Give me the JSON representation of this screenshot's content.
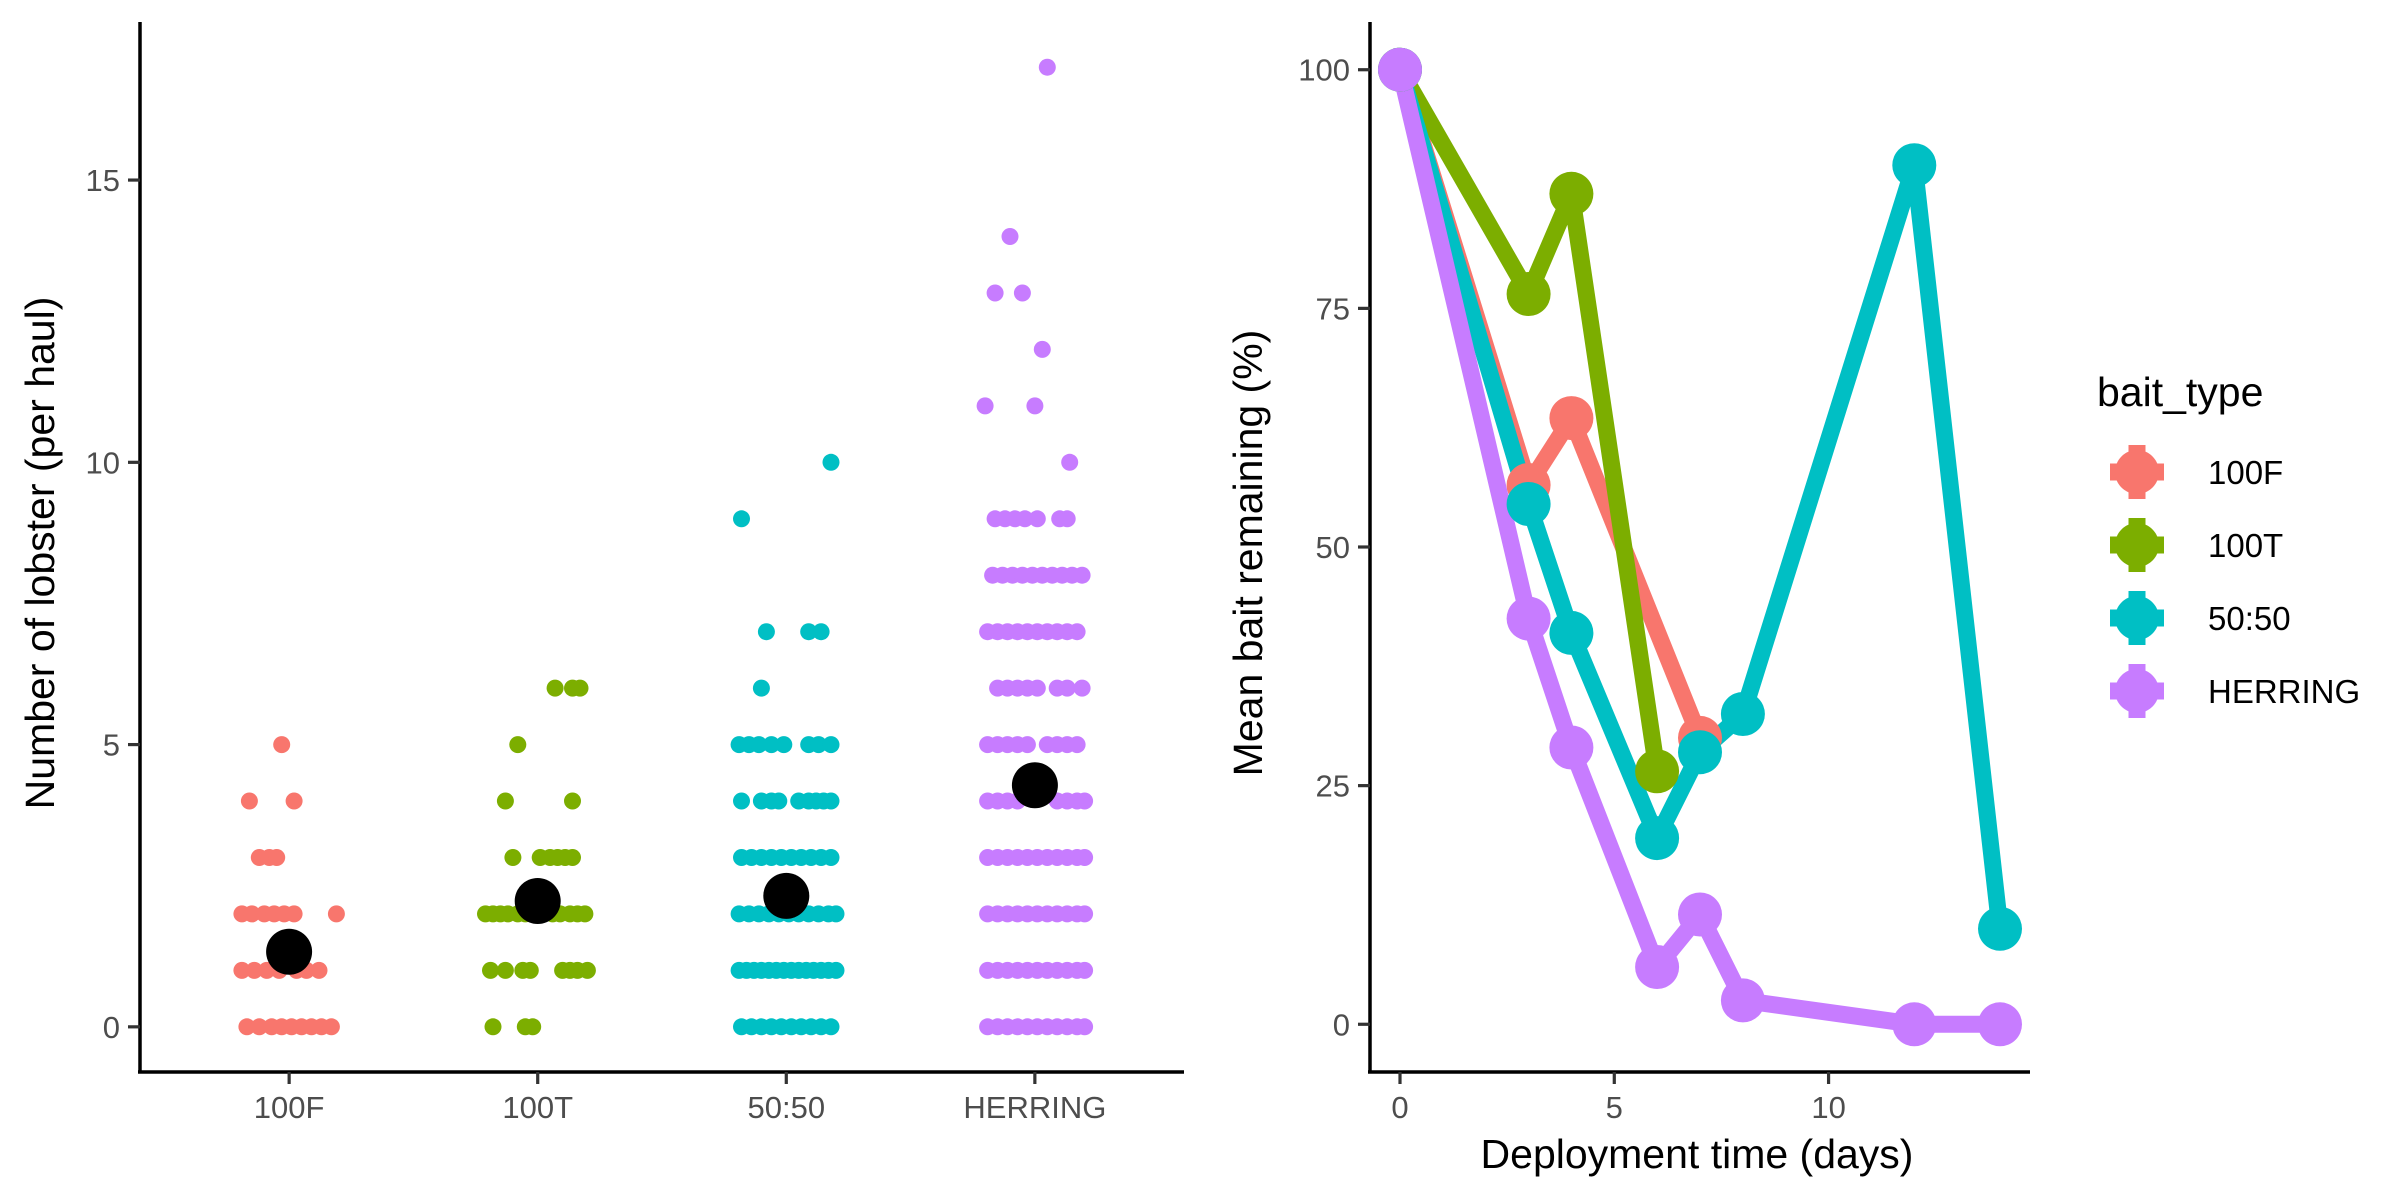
{
  "chart_data": [
    {
      "type": "scatter",
      "title": "",
      "xlabel": "",
      "ylabel": "Number of lobster (per haul)",
      "categories": [
        "100F",
        "100T",
        "50:50",
        "HERRING"
      ],
      "ylim": [
        -0.8,
        17.8
      ],
      "yticks": [
        0,
        5,
        10,
        15
      ],
      "grid": false,
      "colors": {
        "100F": "#F8766D",
        "100T": "#7CAE00",
        "50:50": "#00BFC4",
        "HERRING": "#C77CFF",
        "mean": "#000000"
      },
      "points": {
        "100F": [
          [
            -0.17,
            0
          ],
          [
            -0.12,
            0
          ],
          [
            -0.07,
            0
          ],
          [
            -0.03,
            0
          ],
          [
            0.01,
            0
          ],
          [
            0.05,
            0
          ],
          [
            0.09,
            0
          ],
          [
            0.13,
            0
          ],
          [
            0.17,
            0
          ],
          [
            -0.19,
            1
          ],
          [
            -0.14,
            1
          ],
          [
            -0.09,
            1
          ],
          [
            -0.04,
            1
          ],
          [
            0.03,
            1
          ],
          [
            0.07,
            1
          ],
          [
            0.12,
            1
          ],
          [
            -0.19,
            2
          ],
          [
            -0.15,
            2
          ],
          [
            -0.1,
            2
          ],
          [
            -0.06,
            2
          ],
          [
            -0.02,
            2
          ],
          [
            0.02,
            2
          ],
          [
            0.19,
            2
          ],
          [
            -0.12,
            3
          ],
          [
            -0.08,
            3
          ],
          [
            -0.05,
            3
          ],
          [
            -0.16,
            4
          ],
          [
            0.02,
            4
          ],
          [
            -0.03,
            5
          ]
        ],
        "100T": [
          [
            -0.18,
            0
          ],
          [
            -0.05,
            0
          ],
          [
            -0.02,
            0
          ],
          [
            -0.19,
            1
          ],
          [
            -0.13,
            1
          ],
          [
            -0.06,
            1
          ],
          [
            -0.03,
            1
          ],
          [
            0.1,
            1
          ],
          [
            0.13,
            1
          ],
          [
            0.16,
            1
          ],
          [
            0.2,
            1
          ],
          [
            -0.21,
            2
          ],
          [
            -0.18,
            2
          ],
          [
            -0.15,
            2
          ],
          [
            -0.12,
            2
          ],
          [
            -0.08,
            2
          ],
          [
            -0.05,
            2
          ],
          [
            0.02,
            2
          ],
          [
            0.06,
            2
          ],
          [
            0.09,
            2
          ],
          [
            0.13,
            2
          ],
          [
            0.16,
            2
          ],
          [
            0.19,
            2
          ],
          [
            -0.1,
            3
          ],
          [
            0.01,
            3
          ],
          [
            0.05,
            3
          ],
          [
            0.08,
            3
          ],
          [
            0.11,
            3
          ],
          [
            0.14,
            3
          ],
          [
            -0.13,
            4
          ],
          [
            0.14,
            4
          ],
          [
            -0.08,
            5
          ],
          [
            0.07,
            6
          ],
          [
            0.14,
            6
          ],
          [
            0.17,
            6
          ]
        ],
        "50:50": [
          [
            -0.18,
            0
          ],
          [
            -0.14,
            0
          ],
          [
            -0.1,
            0
          ],
          [
            -0.06,
            0
          ],
          [
            -0.02,
            0
          ],
          [
            0.02,
            0
          ],
          [
            0.06,
            0
          ],
          [
            0.1,
            0
          ],
          [
            0.14,
            0
          ],
          [
            0.18,
            0
          ],
          [
            -0.19,
            1
          ],
          [
            -0.16,
            1
          ],
          [
            -0.13,
            1
          ],
          [
            -0.1,
            1
          ],
          [
            -0.07,
            1
          ],
          [
            -0.04,
            1
          ],
          [
            -0.01,
            1
          ],
          [
            0.02,
            1
          ],
          [
            0.05,
            1
          ],
          [
            0.08,
            1
          ],
          [
            0.11,
            1
          ],
          [
            0.14,
            1
          ],
          [
            0.17,
            1
          ],
          [
            0.2,
            1
          ],
          [
            -0.19,
            2
          ],
          [
            -0.15,
            2
          ],
          [
            -0.11,
            2
          ],
          [
            -0.07,
            2
          ],
          [
            -0.03,
            2
          ],
          [
            0.01,
            2
          ],
          [
            0.05,
            2
          ],
          [
            0.09,
            2
          ],
          [
            0.13,
            2
          ],
          [
            0.17,
            2
          ],
          [
            0.2,
            2
          ],
          [
            -0.18,
            3
          ],
          [
            -0.14,
            3
          ],
          [
            -0.1,
            3
          ],
          [
            -0.06,
            3
          ],
          [
            -0.02,
            3
          ],
          [
            0.02,
            3
          ],
          [
            0.06,
            3
          ],
          [
            0.1,
            3
          ],
          [
            0.14,
            3
          ],
          [
            0.18,
            3
          ],
          [
            -0.18,
            4
          ],
          [
            -0.1,
            4
          ],
          [
            -0.06,
            4
          ],
          [
            -0.03,
            4
          ],
          [
            0.05,
            4
          ],
          [
            0.09,
            4
          ],
          [
            0.12,
            4
          ],
          [
            0.15,
            4
          ],
          [
            0.18,
            4
          ],
          [
            -0.19,
            5
          ],
          [
            -0.15,
            5
          ],
          [
            -0.11,
            5
          ],
          [
            -0.06,
            5
          ],
          [
            -0.01,
            5
          ],
          [
            0.09,
            5
          ],
          [
            0.13,
            5
          ],
          [
            0.18,
            5
          ],
          [
            -0.1,
            6
          ],
          [
            -0.08,
            7
          ],
          [
            0.09,
            7
          ],
          [
            0.14,
            7
          ],
          [
            -0.18,
            9
          ],
          [
            0.18,
            10
          ]
        ],
        "HERRING": [
          [
            -0.19,
            0
          ],
          [
            -0.15,
            0
          ],
          [
            -0.11,
            0
          ],
          [
            -0.07,
            0
          ],
          [
            -0.03,
            0
          ],
          [
            0.01,
            0
          ],
          [
            0.05,
            0
          ],
          [
            0.09,
            0
          ],
          [
            0.13,
            0
          ],
          [
            0.17,
            0
          ],
          [
            0.2,
            0
          ],
          [
            -0.19,
            1
          ],
          [
            -0.15,
            1
          ],
          [
            -0.11,
            1
          ],
          [
            -0.07,
            1
          ],
          [
            -0.03,
            1
          ],
          [
            0.01,
            1
          ],
          [
            0.05,
            1
          ],
          [
            0.09,
            1
          ],
          [
            0.13,
            1
          ],
          [
            0.17,
            1
          ],
          [
            0.2,
            1
          ],
          [
            -0.19,
            2
          ],
          [
            -0.15,
            2
          ],
          [
            -0.11,
            2
          ],
          [
            -0.07,
            2
          ],
          [
            -0.03,
            2
          ],
          [
            0.01,
            2
          ],
          [
            0.05,
            2
          ],
          [
            0.09,
            2
          ],
          [
            0.13,
            2
          ],
          [
            0.17,
            2
          ],
          [
            0.2,
            2
          ],
          [
            -0.19,
            3
          ],
          [
            -0.15,
            3
          ],
          [
            -0.11,
            3
          ],
          [
            -0.07,
            3
          ],
          [
            -0.03,
            3
          ],
          [
            0.01,
            3
          ],
          [
            0.05,
            3
          ],
          [
            0.09,
            3
          ],
          [
            0.13,
            3
          ],
          [
            0.17,
            3
          ],
          [
            0.2,
            3
          ],
          [
            -0.19,
            4
          ],
          [
            -0.15,
            4
          ],
          [
            -0.11,
            4
          ],
          [
            -0.07,
            4
          ],
          [
            0.09,
            4
          ],
          [
            0.13,
            4
          ],
          [
            0.17,
            4
          ],
          [
            0.2,
            4
          ],
          [
            -0.19,
            5
          ],
          [
            -0.15,
            5
          ],
          [
            -0.11,
            5
          ],
          [
            -0.07,
            5
          ],
          [
            -0.03,
            5
          ],
          [
            0.05,
            5
          ],
          [
            0.09,
            5
          ],
          [
            0.13,
            5
          ],
          [
            0.17,
            5
          ],
          [
            -0.15,
            6
          ],
          [
            -0.11,
            6
          ],
          [
            -0.07,
            6
          ],
          [
            -0.03,
            6
          ],
          [
            0.01,
            6
          ],
          [
            0.09,
            6
          ],
          [
            0.13,
            6
          ],
          [
            0.19,
            6
          ],
          [
            -0.19,
            7
          ],
          [
            -0.15,
            7
          ],
          [
            -0.11,
            7
          ],
          [
            -0.07,
            7
          ],
          [
            -0.03,
            7
          ],
          [
            0.01,
            7
          ],
          [
            0.05,
            7
          ],
          [
            0.09,
            7
          ],
          [
            0.13,
            7
          ],
          [
            0.17,
            7
          ],
          [
            -0.17,
            8
          ],
          [
            -0.13,
            8
          ],
          [
            -0.09,
            8
          ],
          [
            -0.05,
            8
          ],
          [
            -0.01,
            8
          ],
          [
            0.03,
            8
          ],
          [
            0.07,
            8
          ],
          [
            0.11,
            8
          ],
          [
            0.15,
            8
          ],
          [
            0.19,
            8
          ],
          [
            -0.16,
            9
          ],
          [
            -0.12,
            9
          ],
          [
            -0.08,
            9
          ],
          [
            -0.04,
            9
          ],
          [
            0.01,
            9
          ],
          [
            0.1,
            9
          ],
          [
            0.13,
            9
          ],
          [
            0.14,
            10
          ],
          [
            -0.2,
            11
          ],
          [
            0.0,
            11
          ],
          [
            -0.16,
            13
          ],
          [
            -0.05,
            13
          ],
          [
            0.03,
            12
          ],
          [
            -0.1,
            14
          ],
          [
            0.05,
            17
          ]
        ]
      },
      "means": [
        {
          "category": "100F",
          "value": 1.33
        },
        {
          "category": "100T",
          "value": 2.23
        },
        {
          "category": "50:50",
          "value": 2.32
        },
        {
          "category": "HERRING",
          "value": 4.28
        }
      ]
    },
    {
      "type": "line",
      "title": "",
      "xlabel": "Deployment time (days)",
      "ylabel": "Mean bait remaining (%)",
      "xlim": [
        -0.7,
        14.7
      ],
      "ylim": [
        -5,
        105
      ],
      "xticks": [
        0,
        5,
        10
      ],
      "yticks": [
        0,
        25,
        50,
        75,
        100
      ],
      "grid": false,
      "legend": {
        "title": "bait_type",
        "position": "right"
      },
      "series": [
        {
          "name": "100F",
          "color": "#F8766D",
          "points": [
            [
              0,
              100
            ],
            [
              3,
              56.5
            ],
            [
              4,
              63.5
            ],
            [
              7,
              30
            ]
          ]
        },
        {
          "name": "100T",
          "color": "#7CAE00",
          "points": [
            [
              0,
              100
            ],
            [
              3,
              76.5
            ],
            [
              4,
              87
            ],
            [
              6,
              26.5
            ]
          ]
        },
        {
          "name": "50:50",
          "color": "#00BFC4",
          "points": [
            [
              0,
              100
            ],
            [
              3,
              54.5
            ],
            [
              4,
              41
            ],
            [
              6,
              19.5
            ],
            [
              7,
              28.5
            ],
            [
              8,
              32.5
            ],
            [
              12,
              90
            ],
            [
              14,
              10
            ]
          ]
        },
        {
          "name": "HERRING",
          "color": "#C77CFF",
          "points": [
            [
              0,
              100
            ],
            [
              3,
              42.5
            ],
            [
              4,
              29
            ],
            [
              6,
              6
            ],
            [
              7,
              11.5
            ],
            [
              8,
              2.5
            ],
            [
              12,
              0
            ],
            [
              14,
              0
            ]
          ]
        }
      ]
    }
  ]
}
